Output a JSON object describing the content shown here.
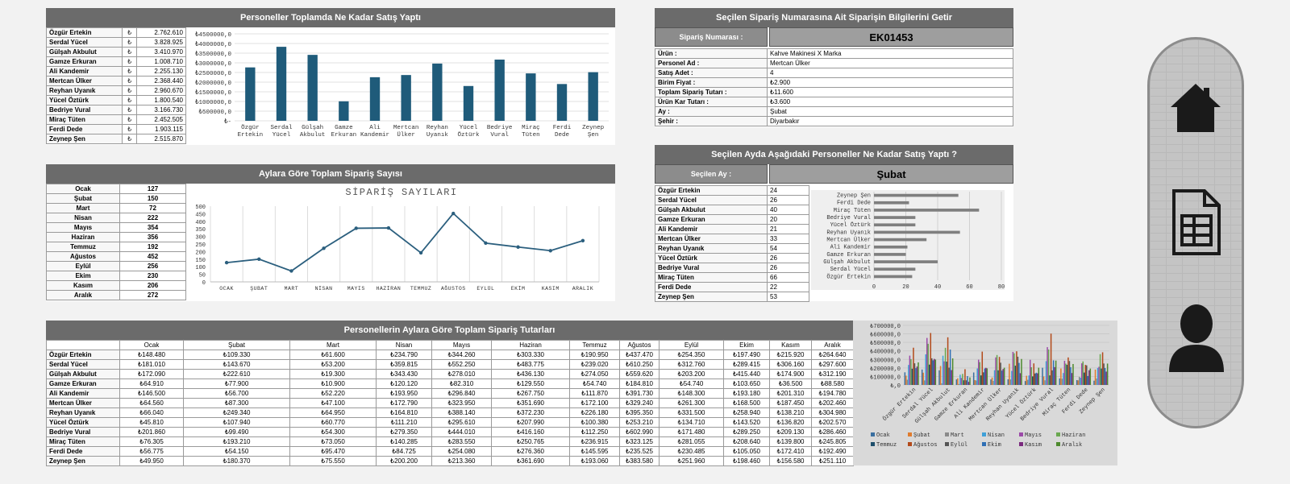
{
  "panels": {
    "p1_title": "Personeller Toplamda Ne Kadar Satış Yaptı",
    "p2_title": "Aylara Göre Toplam Sipariş Sayısı",
    "p3_title": "Personellerin Aylara Göre Toplam Sipariş Tutarları",
    "p4_title": "Seçilen Sipariş Numarasına Ait Siparişin Bilgilerini Getir",
    "p5_title": "Seçilen Ayda Aşağıdaki Personeller Ne Kadar Satış Yaptı ?"
  },
  "currency_symbol": "₺",
  "staff": [
    "Özgür Ertekin",
    "Serdal Yücel",
    "Gülşah Akbulut",
    "Gamze Erkuran",
    "Ali Kandemir",
    "Mertcan Ülker",
    "Reyhan Uyanık",
    "Yücel Öztürk",
    "Bedriye Vural",
    "Miraç Tüten",
    "Ferdi Dede",
    "Zeynep Şen"
  ],
  "staff_totals": [
    "2.762.610",
    "3.828.925",
    "3.410.970",
    "1.008.710",
    "2.255.130",
    "2.368.440",
    "2.960.670",
    "1.800.540",
    "3.166.730",
    "2.452.505",
    "1.903.115",
    "2.515.870"
  ],
  "months": [
    "Ocak",
    "Şubat",
    "Mart",
    "Nisan",
    "Mayıs",
    "Haziran",
    "Temmuz",
    "Ağustos",
    "Eylül",
    "Ekim",
    "Kasım",
    "Aralık"
  ],
  "month_counts": [
    "127",
    "150",
    "72",
    "222",
    "354",
    "356",
    "192",
    "452",
    "256",
    "230",
    "206",
    "272"
  ],
  "order": {
    "label": "Sipariş Numarası :",
    "number": "EK01453",
    "fields": [
      {
        "k": "Ürün :",
        "v": "Kahve Makinesi X Marka"
      },
      {
        "k": "Personel Ad :",
        "v": "Mertcan Ülker"
      },
      {
        "k": "Satış Adet :",
        "v": "4"
      },
      {
        "k": "Birim Fiyat :",
        "v": "₺2.900"
      },
      {
        "k": "Toplam Sipariş Tutarı :",
        "v": "₺11.600"
      },
      {
        "k": "Ürün Kar Tutarı :",
        "v": "₺3.600"
      },
      {
        "k": "Ay :",
        "v": "Şubat"
      },
      {
        "k": "Şehir :",
        "v": "Diyarbakır"
      }
    ]
  },
  "month_sel": {
    "label": "Seçilen Ay :",
    "value": "Şubat",
    "counts": [
      "24",
      "26",
      "40",
      "20",
      "21",
      "33",
      "54",
      "26",
      "26",
      "66",
      "22",
      "53"
    ]
  },
  "amounts": [
    [
      "₺148.480",
      "₺109.330",
      "₺61.600",
      "₺234.790",
      "₺344.260",
      "₺303.330",
      "₺190.950",
      "₺437.470",
      "₺254.350",
      "₺197.490",
      "₺215.920",
      "₺264.640"
    ],
    [
      "₺181.010",
      "₺143.670",
      "₺53.200",
      "₺359.815",
      "₺552.250",
      "₺483.775",
      "₺239.020",
      "₺610.250",
      "₺312.760",
      "₺289.415",
      "₺306.160",
      "₺297.600"
    ],
    [
      "₺172.090",
      "₺222.610",
      "₺19.300",
      "₺343.430",
      "₺278.010",
      "₺436.130",
      "₺274.050",
      "₺559.620",
      "₺203.200",
      "₺415.440",
      "₺174.900",
      "₺312.190"
    ],
    [
      "₺64.910",
      "₺77.900",
      "₺10.900",
      "₺120.120",
      "₺82.310",
      "₺129.550",
      "₺54.740",
      "₺184.810",
      "₺54.740",
      "₺103.650",
      "₺36.500",
      "₺88.580"
    ],
    [
      "₺146.500",
      "₺56.700",
      "₺52.220",
      "₺193.950",
      "₺296.840",
      "₺267.750",
      "₺111.870",
      "₺391.730",
      "₺148.300",
      "₺193.180",
      "₺201.310",
      "₺194.780"
    ],
    [
      "₺64.560",
      "₺87.300",
      "₺47.100",
      "₺172.790",
      "₺323.950",
      "₺351.690",
      "₺172.100",
      "₺329.240",
      "₺261.300",
      "₺168.500",
      "₺187.450",
      "₺202.460"
    ],
    [
      "₺66.040",
      "₺249.340",
      "₺64.950",
      "₺164.810",
      "₺388.140",
      "₺372.230",
      "₺226.180",
      "₺395.350",
      "₺331.500",
      "₺258.940",
      "₺138.210",
      "₺304.980"
    ],
    [
      "₺45.810",
      "₺107.940",
      "₺60.770",
      "₺111.210",
      "₺295.610",
      "₺207.990",
      "₺100.380",
      "₺253.210",
      "₺134.710",
      "₺143.520",
      "₺136.820",
      "₺202.570"
    ],
    [
      "₺201.860",
      "₺99.490",
      "₺54.300",
      "₺279.350",
      "₺444.010",
      "₺416.160",
      "₺112.250",
      "₺602.990",
      "₺171.480",
      "₺289.250",
      "₺209.130",
      "₺286.460"
    ],
    [
      "₺76.305",
      "₺193.210",
      "₺73.050",
      "₺140.285",
      "₺283.550",
      "₺250.765",
      "₺236.915",
      "₺323.125",
      "₺281.055",
      "₺208.640",
      "₺139.800",
      "₺245.805"
    ],
    [
      "₺56.775",
      "₺54.150",
      "₺95.470",
      "₺84.725",
      "₺254.080",
      "₺276.360",
      "₺145.595",
      "₺235.525",
      "₺230.485",
      "₺105.050",
      "₺172.410",
      "₺192.490"
    ],
    [
      "₺49.950",
      "₺180.370",
      "₺75.550",
      "₺200.200",
      "₺213.360",
      "₺361.690",
      "₺193.060",
      "₺383.580",
      "₺251.960",
      "₺198.460",
      "₺156.580",
      "₺251.110"
    ]
  ],
  "nav": {
    "home": "home-icon",
    "sheet": "spreadsheet-icon",
    "user": "user-icon"
  },
  "chart_data": [
    {
      "type": "bar",
      "categories": [
        "Özgür Ertekin",
        "Serdal Yücel",
        "Gülşah Akbulut",
        "Gamze Erkuran",
        "Ali Kandemir",
        "Mertcan Ülker",
        "Reyhan Uyanık",
        "Yücel Öztürk",
        "Bedriye Vural",
        "Miraç Tüten",
        "Ferdi Dede",
        "Zeynep Şen"
      ],
      "values": [
        2762610,
        3828925,
        3410970,
        1008710,
        2255130,
        2368440,
        2960670,
        1800540,
        3166730,
        2452505,
        1903115,
        2515870
      ],
      "y_ticks": [
        "₺-",
        "₺500000,0",
        "₺1000000,0",
        "₺1500000,0",
        "₺2000000,0",
        "₺2500000,0",
        "₺3000000,0",
        "₺3500000,0",
        "₺4000000,0",
        "₺4500000,0"
      ],
      "ylim": [
        0,
        4500000
      ],
      "color": "#1f5b7a"
    },
    {
      "type": "line",
      "title": "SİPARİŞ SAYILARI",
      "categories": [
        "OCAK",
        "ŞUBAT",
        "MART",
        "NİSAN",
        "MAYIS",
        "HAZİRAN",
        "TEMMUZ",
        "AĞUSTOS",
        "EYLÜL",
        "EKİM",
        "KASIM",
        "ARALIK"
      ],
      "values": [
        127,
        150,
        72,
        222,
        354,
        356,
        192,
        452,
        256,
        230,
        206,
        272
      ],
      "y_ticks": [
        "0",
        "50",
        "100",
        "150",
        "200",
        "250",
        "300",
        "350",
        "400",
        "450",
        "500"
      ],
      "ylim": [
        0,
        500
      ],
      "color": "#2b5f7e"
    },
    {
      "type": "bar",
      "orientation": "horizontal",
      "categories": [
        "Özgür Ertekin",
        "Serdal Yücel",
        "Gülşah Akbulut",
        "Gamze Erkuran",
        "Ali Kandemir",
        "Mertcan Ülker",
        "Reyhan Uyanık",
        "Yücel Öztürk",
        "Bedriye Vural",
        "Miraç Tüten",
        "Ferdi Dede",
        "Zeynep Şen"
      ],
      "values": [
        24,
        26,
        40,
        20,
        21,
        33,
        54,
        26,
        26,
        66,
        22,
        53
      ],
      "x_ticks": [
        "0",
        "20",
        "40",
        "60",
        "80"
      ],
      "xlim": [
        0,
        80
      ],
      "color": "#7f7f7f"
    },
    {
      "type": "bar",
      "categories": [
        "Özgür Ertekin",
        "Serdal Yücel",
        "Gülşah Akbulut",
        "Gamze Erkuran",
        "Ali Kandemir",
        "Mertcan Ülker",
        "Reyhan Uyanık",
        "Yücel Öztürk",
        "Bedriye Vural",
        "Miraç Tüten",
        "Ferdi Dede",
        "Zeynep Şen"
      ],
      "legend": [
        "Ocak",
        "Şubat",
        "Mart",
        "Nisan",
        "Mayıs",
        "Haziran",
        "Temmuz",
        "Ağustos",
        "Eylül",
        "Ekim",
        "Kasım",
        "Aralık"
      ],
      "legend_placement": "bottom",
      "colors": [
        "#3a6fa0",
        "#e07c2e",
        "#8a8a8a",
        "#3fa0d8",
        "#9b4aa8",
        "#6aa84f",
        "#1d4e6b",
        "#b34a1a",
        "#555555",
        "#2f6fb5",
        "#7a2a7e",
        "#4e8a2e"
      ],
      "y_ticks": [
        "₺,0",
        "₺100000,0",
        "₺200000,0",
        "₺300000,0",
        "₺400000,0",
        "₺500000,0",
        "₺600000,0",
        "₺700000,0"
      ],
      "ylim": [
        0,
        700000
      ],
      "series_values": [
        [
          148480,
          109330,
          61600,
          234790,
          344260,
          303330,
          190950,
          437470,
          254350,
          197490,
          215920,
          264640
        ],
        [
          181010,
          143670,
          53200,
          359815,
          552250,
          483775,
          239020,
          610250,
          312760,
          289415,
          306160,
          297600
        ],
        [
          172090,
          222610,
          19300,
          343430,
          278010,
          436130,
          274050,
          559620,
          203200,
          415440,
          174900,
          312190
        ],
        [
          64910,
          77900,
          10900,
          120120,
          82310,
          129550,
          54740,
          184810,
          54740,
          103650,
          36500,
          88580
        ],
        [
          146500,
          56700,
          52220,
          193950,
          296840,
          267750,
          111870,
          391730,
          148300,
          193180,
          201310,
          194780
        ],
        [
          64560,
          87300,
          47100,
          172790,
          323950,
          351690,
          172100,
          329240,
          261300,
          168500,
          187450,
          202460
        ],
        [
          66040,
          249340,
          64950,
          164810,
          388140,
          372230,
          226180,
          395350,
          331500,
          258940,
          138210,
          304980
        ],
        [
          45810,
          107940,
          60770,
          111210,
          295610,
          207990,
          100380,
          253210,
          134710,
          143520,
          136820,
          202570
        ],
        [
          201860,
          99490,
          54300,
          279350,
          444010,
          416160,
          112250,
          602990,
          171480,
          289250,
          209130,
          286460
        ],
        [
          76305,
          193210,
          73050,
          140285,
          283550,
          250765,
          236915,
          323125,
          281055,
          208640,
          139800,
          245805
        ],
        [
          56775,
          54150,
          95470,
          84725,
          254080,
          276360,
          145595,
          235525,
          230485,
          105050,
          172410,
          192490
        ],
        [
          49950,
          180370,
          75550,
          200200,
          213360,
          361690,
          193060,
          383580,
          251960,
          198460,
          156580,
          251110
        ]
      ]
    }
  ]
}
